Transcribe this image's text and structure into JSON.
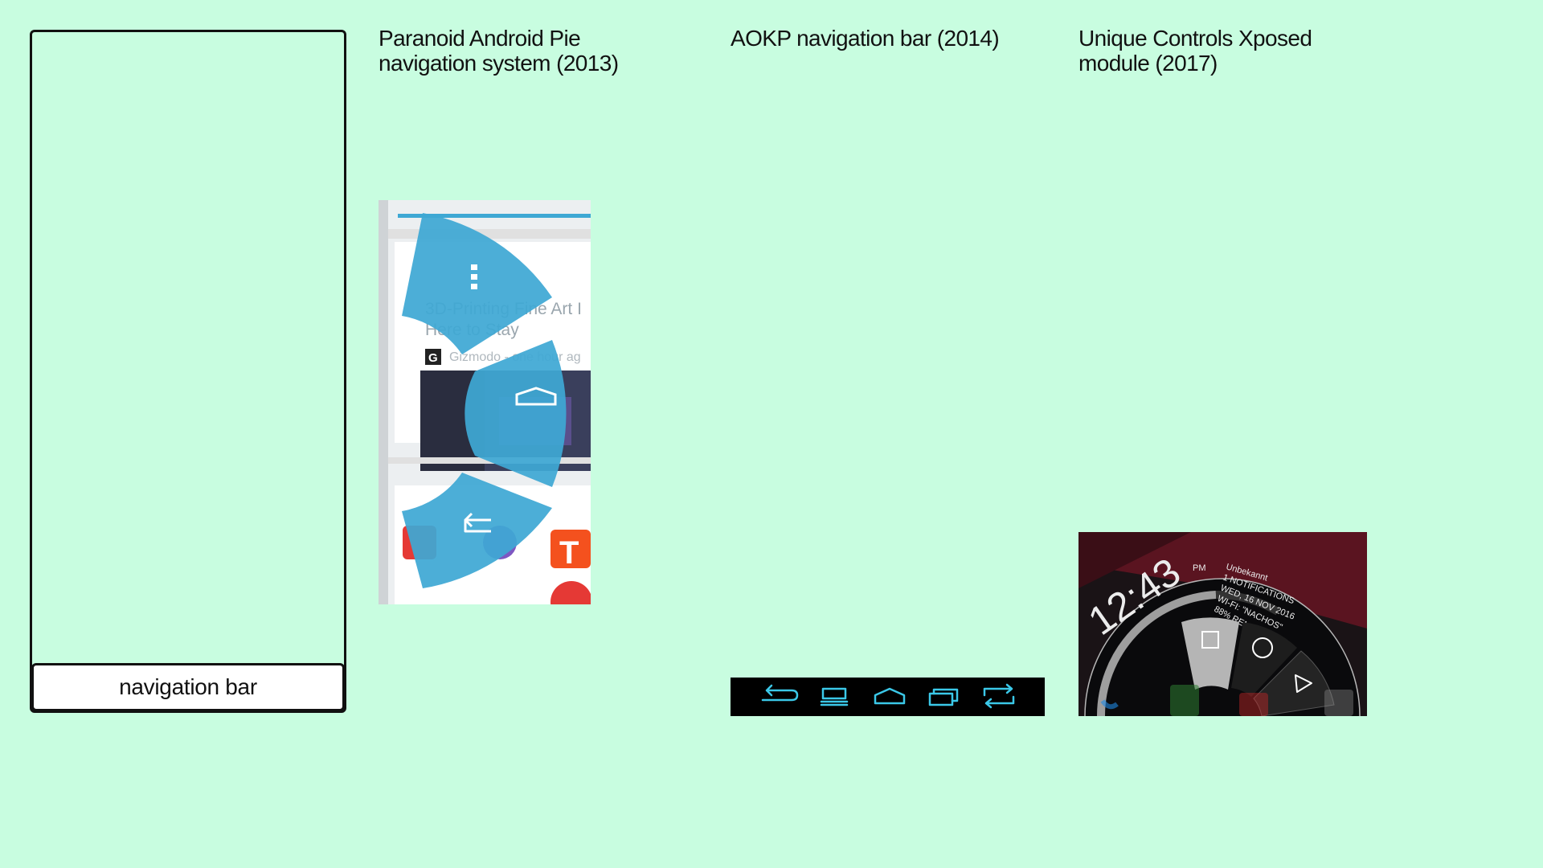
{
  "phone": {
    "navbar_label": "navigation bar"
  },
  "captions": {
    "paranoid": [
      "Paranoid Android Pie",
      "navigation system (2013)"
    ],
    "aokp": [
      "AOKP navigation bar (2014)"
    ],
    "unique": [
      "Unique Controls Xposed",
      "module (2017)"
    ]
  },
  "paranoid_shot": {
    "article_title_line1": "3D-Printing Fine Art I",
    "article_title_line2": "Here to Stay",
    "source_badge": "G",
    "source_text": "Gizmodo - one hour ag",
    "app_letter": "T",
    "pie_color": "#3ea8d4",
    "icons": [
      "menu-icon",
      "home-icon",
      "back-icon"
    ]
  },
  "aokp_shot": {
    "accent": "#3bc8e8",
    "icons": [
      "back-icon",
      "menu-icon",
      "home-icon",
      "recents-icon",
      "swap-icon"
    ]
  },
  "unique_shot": {
    "time": "12:43",
    "ampm": "PM",
    "info_lines": [
      "Unbekannt",
      "1 NOTIFICATIONS",
      "WED, 16 NOV 2016",
      "WI-FI: \"NACHOS\"",
      "88% REMAIN"
    ],
    "icons": [
      "recents-icon",
      "home-icon",
      "back-icon"
    ]
  }
}
